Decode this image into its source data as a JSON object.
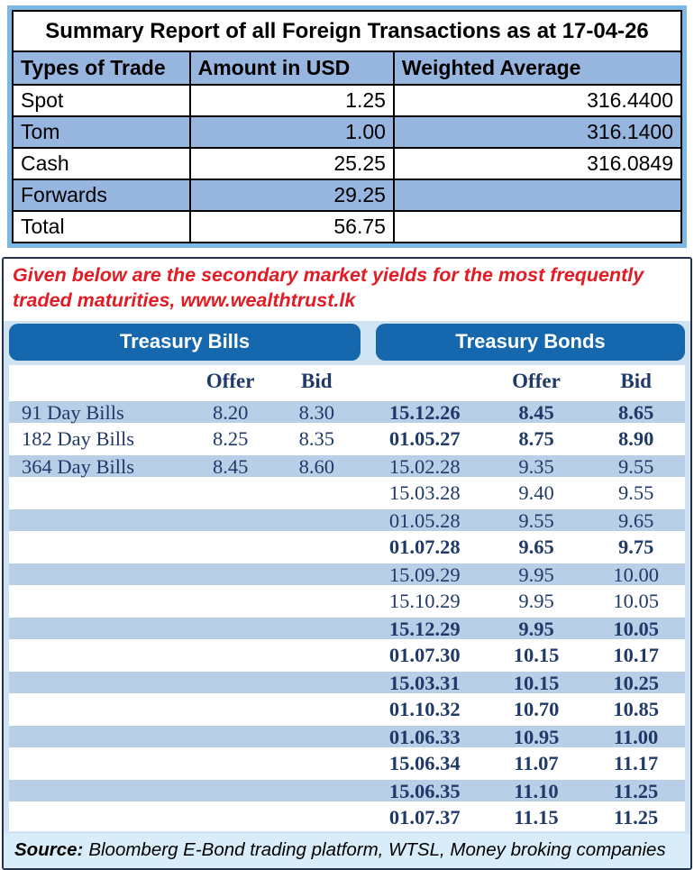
{
  "summary": {
    "title": "Summary Report of all Foreign Transactions as at 17-04-26",
    "columns": [
      "Types of Trade",
      "Amount in USD",
      "Weighted Average"
    ],
    "rows": [
      {
        "type": "Spot",
        "amount": "1.25",
        "weighted_average": "316.4400"
      },
      {
        "type": "Tom",
        "amount": "1.00",
        "weighted_average": "316.1400"
      },
      {
        "type": "Cash",
        "amount": "25.25",
        "weighted_average": "316.0849"
      },
      {
        "type": "Forwards",
        "amount": "29.25",
        "weighted_average": ""
      },
      {
        "type": "Total",
        "amount": "56.75",
        "weighted_average": ""
      }
    ]
  },
  "note": {
    "line1": "Given below are the secondary market yields for the most frequently",
    "line2": "traded maturities, www.wealthtrust.lk"
  },
  "yields": {
    "bills_title": "Treasury Bills",
    "bonds_title": "Treasury Bonds",
    "offer_label": "Offer",
    "bid_label": "Bid",
    "rows": [
      {
        "bill_label": "91 Day Bills",
        "bill_offer": "8.20",
        "bill_bid": "8.30",
        "bond_date": "15.12.26",
        "bond_offer": "8.45",
        "bond_bid": "8.65",
        "bond_bold": true,
        "shaded": true
      },
      {
        "bill_label": "182 Day Bills",
        "bill_offer": "8.25",
        "bill_bid": "8.35",
        "bond_date": "01.05.27",
        "bond_offer": "8.75",
        "bond_bid": "8.90",
        "bond_bold": true,
        "shaded": false
      },
      {
        "bill_label": "364 Day Bills",
        "bill_offer": "8.45",
        "bill_bid": "8.60",
        "bond_date": "15.02.28",
        "bond_offer": "9.35",
        "bond_bid": "9.55",
        "bond_bold": false,
        "shaded": true
      },
      {
        "bill_label": "",
        "bill_offer": "",
        "bill_bid": "",
        "bond_date": "15.03.28",
        "bond_offer": "9.40",
        "bond_bid": "9.55",
        "bond_bold": false,
        "shaded": false
      },
      {
        "bill_label": "",
        "bill_offer": "",
        "bill_bid": "",
        "bond_date": "01.05.28",
        "bond_offer": "9.55",
        "bond_bid": "9.65",
        "bond_bold": false,
        "shaded": true
      },
      {
        "bill_label": "",
        "bill_offer": "",
        "bill_bid": "",
        "bond_date": "01.07.28",
        "bond_offer": "9.65",
        "bond_bid": "9.75",
        "bond_bold": true,
        "shaded": false
      },
      {
        "bill_label": "",
        "bill_offer": "",
        "bill_bid": "",
        "bond_date": "15.09.29",
        "bond_offer": "9.95",
        "bond_bid": "10.00",
        "bond_bold": false,
        "shaded": true
      },
      {
        "bill_label": "",
        "bill_offer": "",
        "bill_bid": "",
        "bond_date": "15.10.29",
        "bond_offer": "9.95",
        "bond_bid": "10.05",
        "bond_bold": false,
        "shaded": false
      },
      {
        "bill_label": "",
        "bill_offer": "",
        "bill_bid": "",
        "bond_date": "15.12.29",
        "bond_offer": "9.95",
        "bond_bid": "10.05",
        "bond_bold": true,
        "shaded": true
      },
      {
        "bill_label": "",
        "bill_offer": "",
        "bill_bid": "",
        "bond_date": "01.07.30",
        "bond_offer": "10.15",
        "bond_bid": "10.17",
        "bond_bold": true,
        "shaded": false
      },
      {
        "bill_label": "",
        "bill_offer": "",
        "bill_bid": "",
        "bond_date": "15.03.31",
        "bond_offer": "10.15",
        "bond_bid": "10.25",
        "bond_bold": true,
        "shaded": true
      },
      {
        "bill_label": "",
        "bill_offer": "",
        "bill_bid": "",
        "bond_date": "01.10.32",
        "bond_offer": "10.70",
        "bond_bid": "10.85",
        "bond_bold": true,
        "shaded": false
      },
      {
        "bill_label": "",
        "bill_offer": "",
        "bill_bid": "",
        "bond_date": "01.06.33",
        "bond_offer": "10.95",
        "bond_bid": "11.00",
        "bond_bold": true,
        "shaded": true
      },
      {
        "bill_label": "",
        "bill_offer": "",
        "bill_bid": "",
        "bond_date": "15.06.34",
        "bond_offer": "11.07",
        "bond_bid": "11.17",
        "bond_bold": true,
        "shaded": false
      },
      {
        "bill_label": "",
        "bill_offer": "",
        "bill_bid": "",
        "bond_date": "15.06.35",
        "bond_offer": "11.10",
        "bond_bid": "11.25",
        "bond_bold": true,
        "shaded": true
      },
      {
        "bill_label": "",
        "bill_offer": "",
        "bill_bid": "",
        "bond_date": "01.07.37",
        "bond_offer": "11.15",
        "bond_bid": "11.25",
        "bond_bold": true,
        "shaded": false
      }
    ]
  },
  "source": {
    "label": "Source:",
    "text": "Bloomberg E-Bond trading platform, WTSL, Money broking companies"
  },
  "colors": {
    "summary_row_blue": "#96b5df",
    "summary_frame_blue": "#7db7e3",
    "header_bar_blue": "#1568ae",
    "yield_row_blue": "#b9cee7",
    "yield_text_navy": "#1f3a68",
    "note_red": "#e11c24",
    "panel_light_blue": "#cfe3f2",
    "source_bg_blue": "#d9ecf9",
    "box_border_navy": "#23304d"
  }
}
